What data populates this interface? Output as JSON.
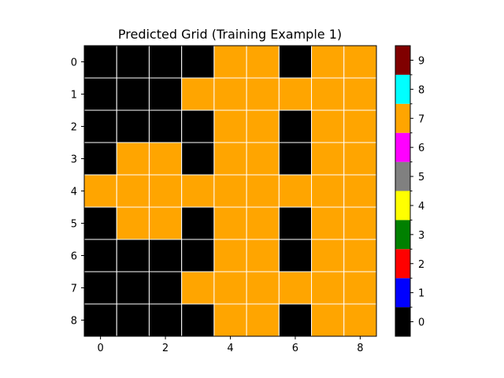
{
  "chart_data": {
    "type": "heatmap",
    "title": "Predicted Grid (Training Example 1)",
    "rows": 9,
    "cols": 9,
    "x_ticks": [
      0,
      2,
      4,
      6,
      8
    ],
    "y_ticks": [
      0,
      1,
      2,
      3,
      4,
      5,
      6,
      7,
      8
    ],
    "grid": [
      [
        0,
        0,
        0,
        0,
        7,
        7,
        0,
        7,
        7
      ],
      [
        0,
        0,
        0,
        7,
        7,
        7,
        7,
        7,
        7
      ],
      [
        0,
        0,
        0,
        0,
        7,
        7,
        0,
        7,
        7
      ],
      [
        0,
        7,
        7,
        0,
        7,
        7,
        0,
        7,
        7
      ],
      [
        7,
        7,
        7,
        7,
        7,
        7,
        7,
        7,
        7
      ],
      [
        0,
        7,
        7,
        0,
        7,
        7,
        0,
        7,
        7
      ],
      [
        0,
        0,
        0,
        0,
        7,
        7,
        0,
        7,
        7
      ],
      [
        0,
        0,
        0,
        7,
        7,
        7,
        7,
        7,
        7
      ],
      [
        0,
        0,
        0,
        0,
        7,
        7,
        0,
        7,
        7
      ]
    ],
    "colormap": [
      "#000000",
      "#0000ff",
      "#ff0000",
      "#008000",
      "#ffff00",
      "#808080",
      "#ff00ff",
      "#ffa500",
      "#00ffff",
      "#800000"
    ],
    "colorbar_ticks": [
      0,
      1,
      2,
      3,
      4,
      5,
      6,
      7,
      8,
      9
    ],
    "grid_lines": true,
    "grid_line_color": "#ffffff"
  }
}
